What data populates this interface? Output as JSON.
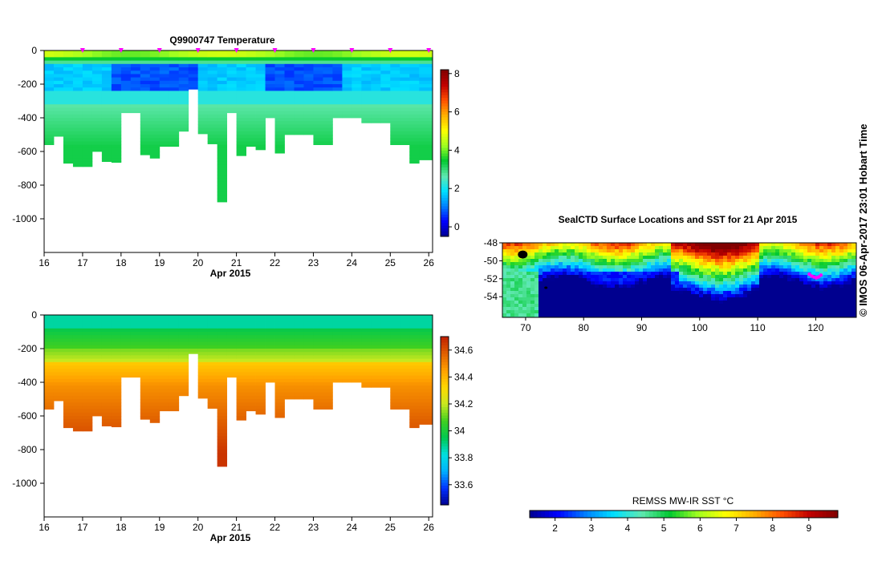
{
  "credit": "© IMOS 06-Apr-2017 23:01 Hobart Time",
  "colors": {
    "palette_jet": [
      "#00008f",
      "#0000ff",
      "#0080ff",
      "#00e0ff",
      "#60e8b0",
      "#00c830",
      "#a0ff20",
      "#ffff00",
      "#ffb000",
      "#ff5000",
      "#c00000",
      "#800000"
    ],
    "palette_sal": [
      "#00008f",
      "#0030ff",
      "#00b0ff",
      "#00e0e0",
      "#00c850",
      "#40d020",
      "#c8e820",
      "#ffd800",
      "#ffa000",
      "#e06000",
      "#c02000"
    ],
    "magenta": "#ff00ff",
    "land": "#000000"
  },
  "chart_data": [
    {
      "id": "temperature",
      "type": "heatmap",
      "title": "Q9900747  Temperature",
      "xlabel": "Apr 2015",
      "ylabel": "",
      "x_ticks": [
        16,
        17,
        18,
        19,
        20,
        21,
        22,
        23,
        24,
        25,
        26
      ],
      "y_ticks": [
        0,
        -200,
        -400,
        -600,
        -800,
        -1000
      ],
      "ylim": [
        -1200,
        0
      ],
      "xlim": [
        16,
        26.1
      ],
      "colorbar_ticks": [
        0,
        2,
        4,
        6,
        8
      ],
      "colorbar_range": [
        -0.5,
        8.2
      ],
      "surface_markers": [
        17,
        18,
        19,
        20,
        21,
        22,
        23,
        24,
        25,
        26
      ],
      "profiles": [
        {
          "t": 16.0,
          "depth": 560
        },
        {
          "t": 16.25,
          "depth": 510
        },
        {
          "t": 16.5,
          "depth": 670
        },
        {
          "t": 16.75,
          "depth": 690
        },
        {
          "t": 17.0,
          "depth": 690
        },
        {
          "t": 17.25,
          "depth": 600
        },
        {
          "t": 17.5,
          "depth": 660
        },
        {
          "t": 17.75,
          "depth": 665
        },
        {
          "t": 18.0,
          "depth": 370
        },
        {
          "t": 18.25,
          "depth": 370
        },
        {
          "t": 18.5,
          "depth": 620
        },
        {
          "t": 18.75,
          "depth": 640
        },
        {
          "t": 19.0,
          "depth": 570
        },
        {
          "t": 19.25,
          "depth": 570
        },
        {
          "t": 19.5,
          "depth": 480
        },
        {
          "t": 19.75,
          "depth": 230
        },
        {
          "t": 20.0,
          "depth": 495
        },
        {
          "t": 20.25,
          "depth": 555
        },
        {
          "t": 20.5,
          "depth": 900
        },
        {
          "t": 20.75,
          "depth": 370
        },
        {
          "t": 21.0,
          "depth": 625
        },
        {
          "t": 21.25,
          "depth": 570
        },
        {
          "t": 21.5,
          "depth": 590
        },
        {
          "t": 21.75,
          "depth": 400
        },
        {
          "t": 22.0,
          "depth": 610
        },
        {
          "t": 22.25,
          "depth": 500
        },
        {
          "t": 22.5,
          "depth": 500
        },
        {
          "t": 22.75,
          "depth": 500
        },
        {
          "t": 23.0,
          "depth": 560
        },
        {
          "t": 23.25,
          "depth": 560
        },
        {
          "t": 23.5,
          "depth": 400
        },
        {
          "t": 23.75,
          "depth": 400
        },
        {
          "t": 24.0,
          "depth": 400
        },
        {
          "t": 24.25,
          "depth": 430
        },
        {
          "t": 24.5,
          "depth": 430
        },
        {
          "t": 24.75,
          "depth": 430
        },
        {
          "t": 25.0,
          "depth": 560
        },
        {
          "t": 25.25,
          "depth": 560
        },
        {
          "t": 25.5,
          "depth": 670
        },
        {
          "t": 25.75,
          "depth": 650
        }
      ]
    },
    {
      "id": "salinity",
      "type": "heatmap",
      "title": "",
      "xlabel": "Apr 2015",
      "ylabel": "",
      "x_ticks": [
        16,
        17,
        18,
        19,
        20,
        21,
        22,
        23,
        24,
        25,
        26
      ],
      "y_ticks": [
        0,
        -200,
        -400,
        -600,
        -800,
        -1000
      ],
      "ylim": [
        -1200,
        0
      ],
      "xlim": [
        16,
        26.1
      ],
      "colorbar_ticks": [
        "33.6",
        "33.8",
        "34",
        "34.2",
        "34.4",
        "34.6"
      ],
      "colorbar_range": [
        33.45,
        34.7
      ]
    },
    {
      "id": "sst_map",
      "type": "heatmap",
      "title": "SealCTD Surface Locations and SST for 21 Apr 2015",
      "x_ticks": [
        70,
        80,
        90,
        100,
        110,
        120
      ],
      "y_ticks": [
        -48,
        -50,
        -52,
        -54
      ],
      "xlim": [
        66,
        127
      ],
      "ylim": [
        -56.3,
        -48
      ],
      "colorbar_label": "REMSS MW-IR SST °C",
      "colorbar_ticks": [
        2,
        3,
        4,
        5,
        6,
        7,
        8,
        9
      ],
      "colorbar_range": [
        1.3,
        9.8
      ],
      "seal_locations": [
        {
          "lon": 119.3,
          "lat": -51.7
        },
        {
          "lon": 119.7,
          "lat": -51.8
        },
        {
          "lon": 120.1,
          "lat": -51.9
        },
        {
          "lon": 120.5,
          "lat": -51.8
        },
        {
          "lon": 120.9,
          "lat": -51.6
        },
        {
          "lon": 118.9,
          "lat": -51.5
        }
      ]
    }
  ]
}
